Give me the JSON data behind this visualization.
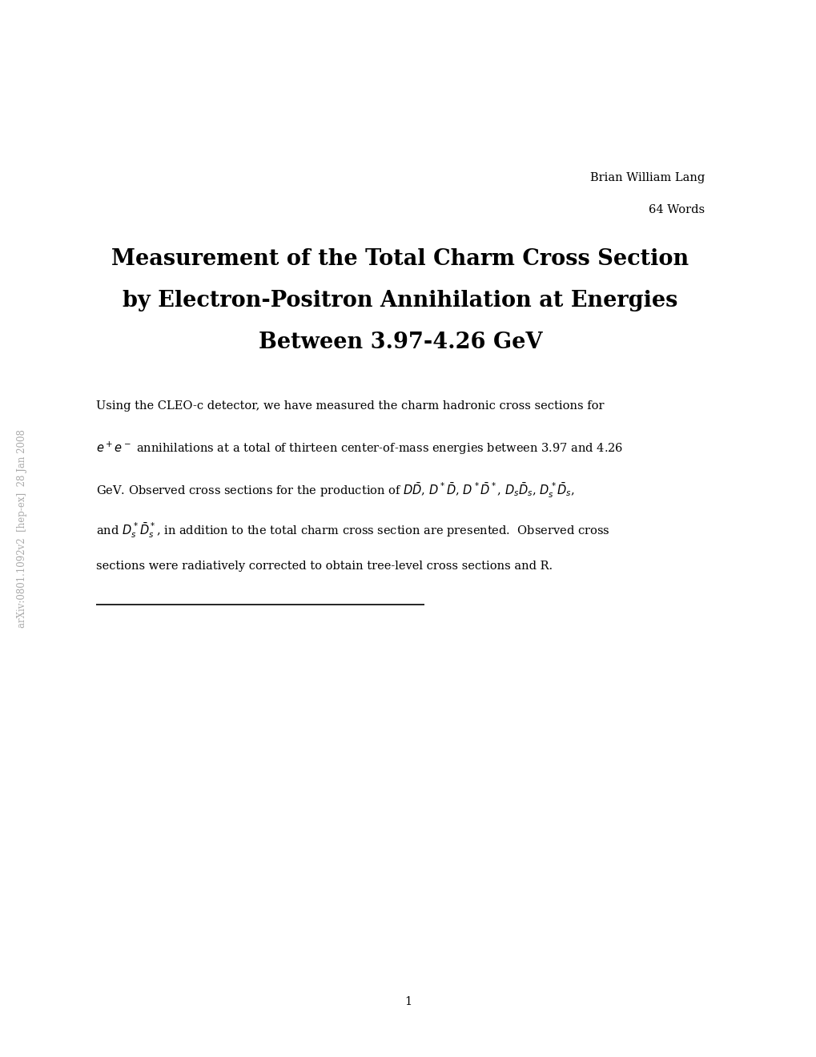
{
  "background_color": "#ffffff",
  "author": "Brian William Lang",
  "word_count": "64 Words",
  "title_line1": "Measurement of the Total Charm Cross Section",
  "title_line2": "by Electron-Positron Annihilation at Energies",
  "title_line3": "Between 3.97-4.26 GeV",
  "abstract_line1": "Using the CLEO-c detector, we have measured the charm hadronic cross sections for",
  "abstract_line2_a": "$e^+e^-$",
  "abstract_line2_b": " annihilations at a total of thirteen center-of-mass energies between 3.97 and 4.26",
  "abstract_line3_a": "GeV. Observed cross sections for the production of $D\\bar{D}$, $D^*\\bar{D}$, $D^*\\bar{D}^*$, $D_s\\bar{D}_s$, $D_s^*\\bar{D}_s$,",
  "abstract_line4_a": "and $D_s^*\\bar{D}_s^*$, in addition to the total charm cross section are presented.  Observed cross",
  "abstract_line5": "sections were radiatively corrected to obtain tree-level cross sections and R.",
  "page_number": "1",
  "arxiv_label": "arXiv:0801.1092v2  [hep-ex]  28 Jan 2008",
  "sidebar_color": "#aaaaaa",
  "text_color": "#000000",
  "title_fontsize": 19.5,
  "author_fontsize": 10.5,
  "abstract_fontsize": 10.5,
  "page_num_fontsize": 10.5,
  "arxiv_fontsize": 8.5
}
